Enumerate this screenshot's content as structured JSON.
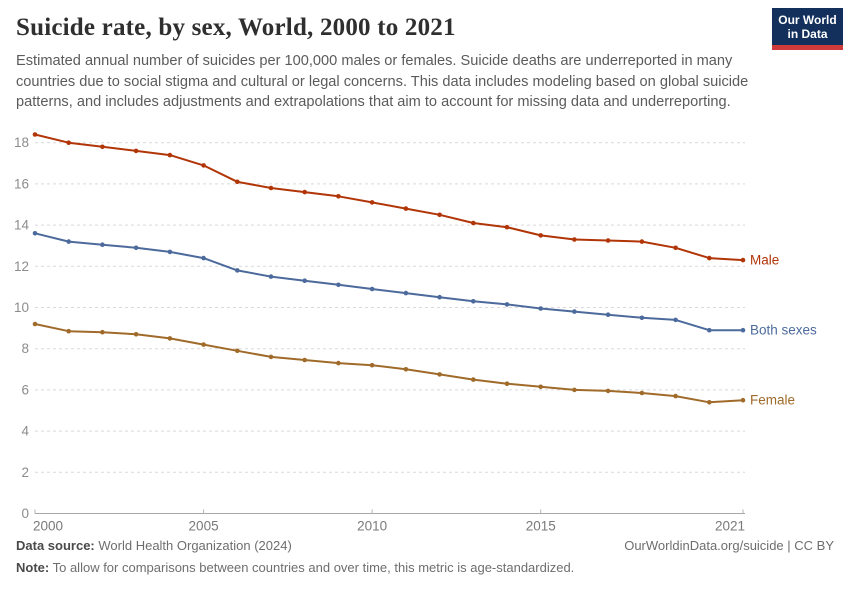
{
  "header": {
    "title": "Suicide rate, by sex, World, 2000 to 2021",
    "subtitle": "Estimated annual number of suicides per 100,000 males or females. Suicide deaths are underreported in many countries due to social stigma and cultural or legal concerns. This data includes modeling based on global suicide patterns, and includes adjustments and extrapolations that aim to account for missing data and underreporting.",
    "logo": {
      "line1": "Our World",
      "line2": "in Data"
    }
  },
  "chart_data": {
    "type": "line",
    "title": "Suicide rate, by sex, World, 2000 to 2021",
    "unit": "suicides per 100,000",
    "x": [
      2000,
      2001,
      2002,
      2003,
      2004,
      2005,
      2006,
      2007,
      2008,
      2009,
      2010,
      2011,
      2012,
      2013,
      2014,
      2015,
      2016,
      2017,
      2018,
      2019,
      2020,
      2021
    ],
    "series": [
      {
        "name": "Male",
        "color": "#b13507",
        "values": [
          18.4,
          18.0,
          17.8,
          17.6,
          17.4,
          16.9,
          16.1,
          15.8,
          15.6,
          15.4,
          15.1,
          14.8,
          14.5,
          14.1,
          13.9,
          13.5,
          13.3,
          13.25,
          13.2,
          12.9,
          12.4,
          12.3
        ]
      },
      {
        "name": "Both sexes",
        "color": "#4c6a9c",
        "values": [
          13.6,
          13.2,
          13.05,
          12.9,
          12.7,
          12.4,
          11.8,
          11.5,
          11.3,
          11.1,
          10.9,
          10.7,
          10.5,
          10.3,
          10.15,
          9.95,
          9.8,
          9.65,
          9.5,
          9.4,
          8.9,
          8.9
        ]
      },
      {
        "name": "Female",
        "color": "#a06b2a",
        "values": [
          9.2,
          8.85,
          8.8,
          8.7,
          8.5,
          8.2,
          7.9,
          7.6,
          7.45,
          7.3,
          7.2,
          7.0,
          6.75,
          6.5,
          6.3,
          6.15,
          6.0,
          5.95,
          5.85,
          5.7,
          5.4,
          5.5
        ]
      }
    ],
    "xlabel": "",
    "ylabel": "",
    "ylim": [
      0,
      18
    ],
    "yticks": [
      0,
      2,
      4,
      6,
      8,
      10,
      12,
      14,
      16,
      18
    ],
    "xticks": [
      2000,
      2005,
      2010,
      2015,
      2021
    ],
    "grid": "horizontal-dashed",
    "legend_position": "line-end-labels"
  },
  "footer": {
    "data_source_label": "Data source:",
    "data_source_value": "World Health Organization (2024)",
    "link": "OurWorldinData.org/suicide | CC BY",
    "note_label": "Note:",
    "note_value": "To allow for comparisons between countries and over time, this metric is age-standardized."
  }
}
